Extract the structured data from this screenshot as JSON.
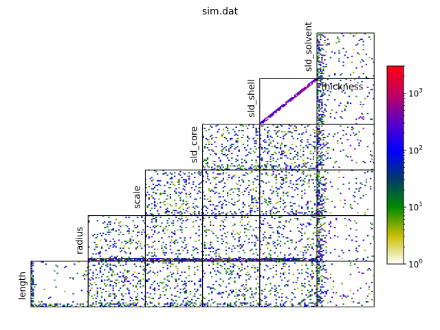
{
  "chart_data": {
    "type": "heatmap",
    "title": "sim.dat",
    "layout": "lower-triangular pairwise 2D histograms (corner plot)",
    "parameters": [
      "length",
      "radius",
      "scale",
      "sld_core",
      "sld_shell",
      "sld_solvent",
      "thickness"
    ],
    "diagonal_labels": [
      "length",
      "radius",
      "scale",
      "sld_core",
      "sld_shell",
      "sld_solvent"
    ],
    "right_column_label": "thickness",
    "colorbar": {
      "scale": "log",
      "range": [
        1,
        3000
      ],
      "tick_labels": [
        {
          "base": "10",
          "exp": "0",
          "value": 1
        },
        {
          "base": "10",
          "exp": "1",
          "value": 10
        },
        {
          "base": "10",
          "exp": "2",
          "value": 100
        },
        {
          "base": "10",
          "exp": "3",
          "value": 1000
        }
      ],
      "colormap": [
        "#ffffff",
        "#c8be00",
        "#008a00",
        "#003a6a",
        "#0000ff",
        "#5a00c8",
        "#c00060",
        "#ff0010"
      ]
    },
    "panels": [
      {
        "row": 0,
        "col": 5,
        "pattern": "clustered_corner",
        "seed": 11
      },
      {
        "row": 1,
        "col": 4,
        "pattern": "diagonal",
        "seed": 21
      },
      {
        "row": 1,
        "col": 5,
        "pattern": "clustered_corner",
        "seed": 12
      },
      {
        "row": 2,
        "col": 3,
        "pattern": "scatter",
        "seed": 31
      },
      {
        "row": 2,
        "col": 4,
        "pattern": "scatter",
        "seed": 32
      },
      {
        "row": 2,
        "col": 5,
        "pattern": "clustered_corner",
        "seed": 13
      },
      {
        "row": 3,
        "col": 2,
        "pattern": "scatter",
        "seed": 41
      },
      {
        "row": 3,
        "col": 3,
        "pattern": "scatter",
        "seed": 42
      },
      {
        "row": 3,
        "col": 4,
        "pattern": "scatter",
        "seed": 43
      },
      {
        "row": 3,
        "col": 5,
        "pattern": "clustered_corner",
        "seed": 14
      },
      {
        "row": 4,
        "col": 1,
        "pattern": "bottom_band",
        "seed": 51
      },
      {
        "row": 4,
        "col": 2,
        "pattern": "bottom_band",
        "seed": 52
      },
      {
        "row": 4,
        "col": 3,
        "pattern": "bottom_band",
        "seed": 53
      },
      {
        "row": 4,
        "col": 4,
        "pattern": "bottom_band",
        "seed": 54
      },
      {
        "row": 4,
        "col": 5,
        "pattern": "clustered_corner",
        "seed": 15
      },
      {
        "row": 5,
        "col": 0,
        "pattern": "sparse_bottom",
        "seed": 61
      },
      {
        "row": 5,
        "col": 1,
        "pattern": "scatter",
        "seed": 62
      },
      {
        "row": 5,
        "col": 2,
        "pattern": "scatter",
        "seed": 63
      },
      {
        "row": 5,
        "col": 3,
        "pattern": "scatter",
        "seed": 64
      },
      {
        "row": 5,
        "col": 4,
        "pattern": "scatter",
        "seed": 65
      },
      {
        "row": 5,
        "col": 5,
        "pattern": "clustered_corner",
        "seed": 16
      }
    ]
  }
}
